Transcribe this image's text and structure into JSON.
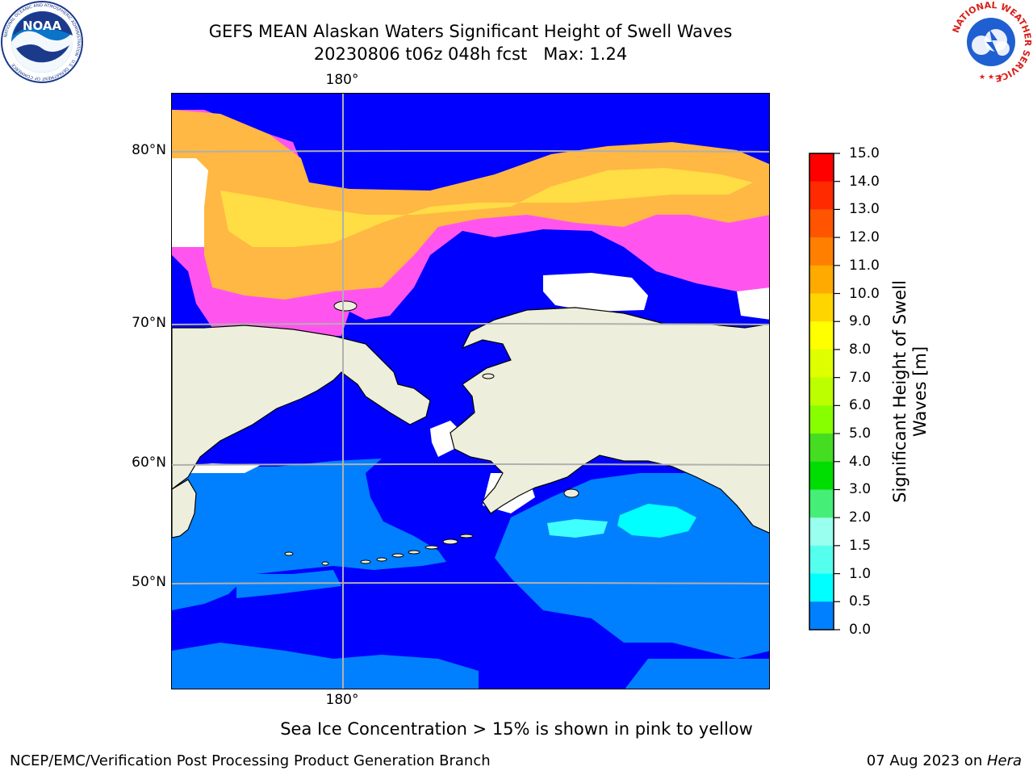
{
  "title": {
    "line1": "GEFS MEAN Alaskan Waters Significant Height of Swell Waves",
    "line2_date": "20230806 t06z 048h fcst",
    "line2_max": "Max: 1.24"
  },
  "map": {
    "lon_label_top": "180°",
    "lon_label_bottom": "180°",
    "lat_labels": [
      "80°N",
      "70°N",
      "60°N",
      "50°N"
    ],
    "colors": {
      "land": "#eeeedd",
      "ice_free_ocean_0": "#0000ff",
      "swell_05": "#0080ff",
      "swell_15": "#00ffff",
      "swell_10": "#40ffff",
      "sea_ice_pink": "#ff55ee",
      "sea_ice_orange": "#ffb844",
      "sea_ice_yellow": "#ffdd44",
      "no_data_white": "#ffffff",
      "grid": "#b0b0b0"
    }
  },
  "colorbar": {
    "title_line1": "Significant Height of Swell",
    "title_line2": "Waves [m]",
    "ticks": [
      "15.0",
      "14.0",
      "13.0",
      "12.0",
      "11.0",
      "10.0",
      "9.0",
      "8.0",
      "7.0",
      "6.0",
      "5.0",
      "4.0",
      "3.0",
      "2.0",
      "1.5",
      "1.0",
      "0.5",
      "0.0"
    ],
    "colors_top_to_bottom": [
      "#ff0000",
      "#ff2a00",
      "#ff5500",
      "#ff8000",
      "#ffaa00",
      "#ffd500",
      "#ffff00",
      "#ddff00",
      "#bbff00",
      "#88ff00",
      "#44dd22",
      "#00dd00",
      "#44ee77",
      "#99ffee",
      "#55ffee",
      "#00ffff",
      "#0080ff",
      "#0000ff"
    ]
  },
  "caption": "Sea Ice Concentration > 15% is shown in pink to yellow",
  "footer": {
    "left": "NCEP/EMC/Verification Post Processing Product Generation Branch",
    "right_date": "07 Aug 2023 on ",
    "right_host": "Hera"
  },
  "logos": {
    "noaa_text": "NOAA",
    "noaa_ring_text": "NATIONAL OCEANIC AND ATMOSPHERIC ADMINISTRATION · U.S. DEPARTMENT OF COMMERCE",
    "nws_ring_text": "NATIONAL WEATHER SERVICE"
  }
}
